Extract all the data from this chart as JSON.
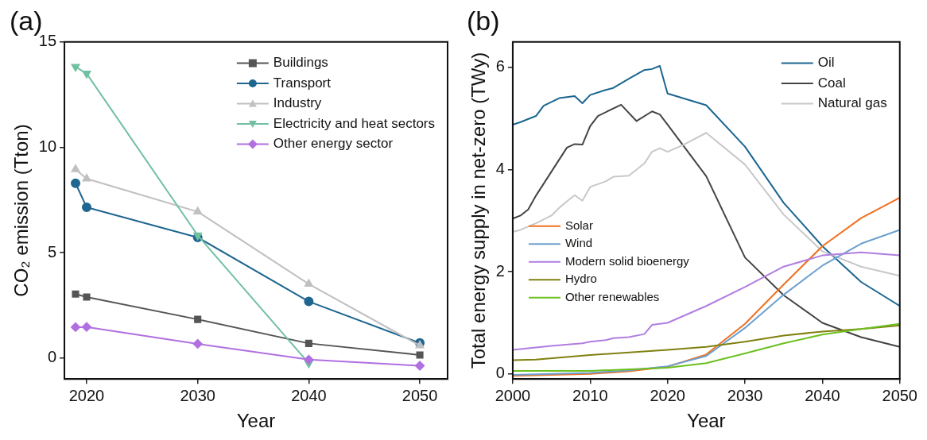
{
  "chart_data": [
    {
      "type": "line",
      "title": "(a)",
      "xlabel": "Year",
      "ylabel": "CO₂ emission (Tton)",
      "x": [
        2019,
        2020,
        2030,
        2040,
        2050
      ],
      "xlim": [
        2018,
        2052.5
      ],
      "xticks": [
        2020,
        2030,
        2040,
        2050
      ],
      "ylim": [
        -1,
        15
      ],
      "yticks": [
        0,
        5,
        10,
        15
      ],
      "legend": "top right",
      "series": [
        {
          "name": "Buildings",
          "color": "#555555",
          "marker": "square",
          "values": [
            3.03,
            2.89,
            1.83,
            0.69,
            0.14
          ]
        },
        {
          "name": "Transport",
          "color": "#1f6690",
          "marker": "circle",
          "values": [
            8.29,
            7.15,
            5.72,
            2.68,
            0.71
          ]
        },
        {
          "name": "Industry",
          "color": "#c0c0c0",
          "marker": "triangle",
          "values": [
            8.95,
            8.51,
            6.94,
            3.51,
            0.59
          ]
        },
        {
          "name": "Electricity and heat sectors",
          "color": "#72c0a2",
          "marker": "triangle-down",
          "values": [
            13.82,
            13.5,
            5.82,
            -0.25,
            null
          ]
        },
        {
          "name": "Other energy sector",
          "color": "#b070e0",
          "marker": "diamond",
          "values": [
            1.46,
            1.47,
            0.67,
            -0.08,
            -0.37
          ]
        }
      ]
    },
    {
      "type": "line",
      "title": "(b)",
      "xlabel": "Year",
      "ylabel": "Total energy supply in net-zero (TWy)",
      "xlim": [
        2000,
        2050
      ],
      "xticks": [
        2000,
        2010,
        2020,
        2030,
        2040,
        2050
      ],
      "ylim": [
        -0.1,
        6.5
      ],
      "yticks": [
        0,
        2,
        4,
        6
      ],
      "legend": "top right",
      "marker": "none",
      "series": [
        {
          "name": "Oil",
          "color": "#1b6690",
          "x": [
            2000,
            2001,
            2003,
            2004,
            2006,
            2008,
            2009,
            2010,
            2012,
            2013,
            2015,
            2017,
            2018,
            2019,
            2020,
            2025,
            2030,
            2035,
            2040,
            2045,
            2050
          ],
          "values": [
            4.88,
            4.93,
            5.05,
            5.25,
            5.4,
            5.44,
            5.3,
            5.46,
            5.56,
            5.6,
            5.78,
            5.95,
            5.97,
            6.03,
            5.49,
            5.26,
            4.45,
            3.35,
            2.5,
            1.8,
            1.33
          ]
        },
        {
          "name": "Coal",
          "color": "#444444",
          "x": [
            2000,
            2001,
            2002,
            2003,
            2005,
            2007,
            2008,
            2009,
            2010,
            2011,
            2014,
            2016,
            2018,
            2019,
            2020,
            2025,
            2030,
            2035,
            2040,
            2045,
            2050
          ],
          "values": [
            3.04,
            3.1,
            3.22,
            3.49,
            3.96,
            4.43,
            4.5,
            4.49,
            4.85,
            5.05,
            5.27,
            4.95,
            5.14,
            5.08,
            4.88,
            3.87,
            2.28,
            1.54,
            1.0,
            0.72,
            0.53
          ]
        },
        {
          "name": "Natural gas",
          "color": "#c8c8c8",
          "x": [
            2000,
            2001,
            2003,
            2005,
            2006,
            2007,
            2008,
            2009,
            2010,
            2012,
            2013,
            2015,
            2017,
            2018,
            2019,
            2020,
            2022,
            2025,
            2030,
            2035,
            2040,
            2045,
            2050
          ],
          "values": [
            2.78,
            2.82,
            2.95,
            3.1,
            3.25,
            3.38,
            3.5,
            3.39,
            3.66,
            3.77,
            3.86,
            3.88,
            4.12,
            4.35,
            4.42,
            4.35,
            4.48,
            4.72,
            4.1,
            3.12,
            2.4,
            2.1,
            1.92
          ]
        },
        {
          "name": "Solar",
          "color": "#f07020",
          "x": [
            2000,
            2010,
            2015,
            2020,
            2025,
            2030,
            2035,
            2040,
            2045,
            2050
          ],
          "values": [
            -0.04,
            0.0,
            0.05,
            0.14,
            0.38,
            0.98,
            1.75,
            2.5,
            3.05,
            3.45
          ]
        },
        {
          "name": "Wind",
          "color": "#6ca0d0",
          "x": [
            2000,
            2010,
            2015,
            2020,
            2025,
            2030,
            2035,
            2040,
            2045,
            2050
          ],
          "values": [
            -0.02,
            0.02,
            0.07,
            0.15,
            0.35,
            0.9,
            1.55,
            2.12,
            2.55,
            2.82
          ]
        },
        {
          "name": "Modern solid bioenergy",
          "color": "#b07ee0",
          "x": [
            2000,
            2005,
            2009,
            2010,
            2012,
            2013,
            2015,
            2017,
            2018,
            2020,
            2025,
            2030,
            2035,
            2040,
            2045,
            2050
          ],
          "values": [
            0.47,
            0.55,
            0.6,
            0.63,
            0.66,
            0.7,
            0.72,
            0.78,
            0.96,
            1.0,
            1.33,
            1.7,
            2.1,
            2.32,
            2.38,
            2.32
          ]
        },
        {
          "name": "Hydro",
          "color": "#808010",
          "x": [
            2000,
            2003,
            2010,
            2020,
            2025,
            2030,
            2035,
            2040,
            2045,
            2050
          ],
          "values": [
            0.27,
            0.28,
            0.37,
            0.47,
            0.53,
            0.63,
            0.75,
            0.83,
            0.88,
            0.95
          ]
        },
        {
          "name": "Other renewables",
          "color": "#6cc020",
          "x": [
            2000,
            2010,
            2017,
            2020,
            2025,
            2030,
            2035,
            2040,
            2045,
            2050
          ],
          "values": [
            0.06,
            0.06,
            0.1,
            0.12,
            0.21,
            0.4,
            0.6,
            0.77,
            0.88,
            0.98
          ]
        }
      ]
    }
  ]
}
